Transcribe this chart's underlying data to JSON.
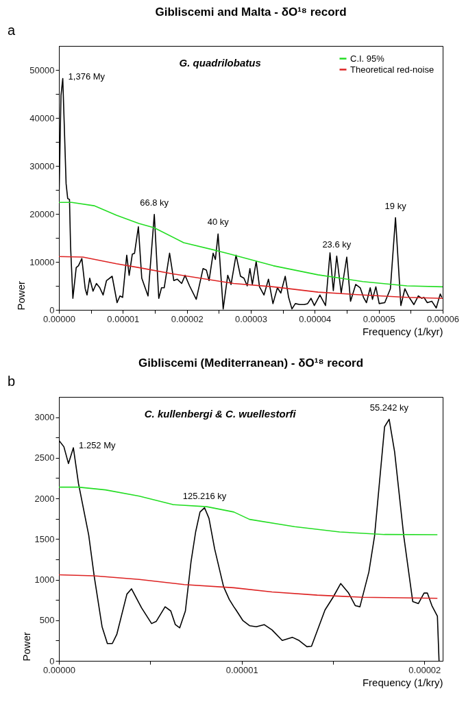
{
  "chart_data": [
    {
      "type": "line",
      "title": "Gibliscemi and Malta  - δO¹⁸ record",
      "xlabel": "Frequency (1/kyr)",
      "ylabel": "Power",
      "xlim": [
        0,
        6e-05
      ],
      "ylim": [
        0,
        55000
      ],
      "xticks": [
        {
          "value": 0,
          "label": "0.00000"
        },
        {
          "value": 5e-06,
          "label": null
        },
        {
          "value": 1e-05,
          "label": "0.00001"
        },
        {
          "value": 1.5e-05,
          "label": null
        },
        {
          "value": 2e-05,
          "label": "0.00002"
        },
        {
          "value": 2.5e-05,
          "label": null
        },
        {
          "value": 3e-05,
          "label": "0.00003"
        },
        {
          "value": 3.5e-05,
          "label": null
        },
        {
          "value": 4e-05,
          "label": "0.00004"
        },
        {
          "value": 4.5e-05,
          "label": null
        },
        {
          "value": 5e-05,
          "label": "0.00005"
        },
        {
          "value": 5.5e-05,
          "label": null
        },
        {
          "value": 6e-05,
          "label": "0.00006"
        }
      ],
      "yticks": [
        0,
        {
          "value": 5000,
          "label": null
        },
        10000,
        {
          "value": 15000,
          "label": null
        },
        20000,
        {
          "value": 25000,
          "label": null
        },
        30000,
        {
          "value": 35000,
          "label": null
        },
        40000,
        {
          "value": 45000,
          "label": null
        },
        50000
      ],
      "legend": "top right",
      "marker": "none",
      "series": [
        {
          "color": "#000000",
          "x": [
            4e-08,
            3.2e-07,
            6e-07,
            8.1e-07,
            1.12e-06,
            1.37e-06,
            1.65e-06,
            1.82e-06,
            2.18e-06,
            2.7e-06,
            3.05e-06,
            3.58e-06,
            4.11e-06,
            4.39e-06,
            4.81e-06,
            5.33e-06,
            5.86e-06,
            6.39e-06,
            6.91e-06,
            7.44e-06,
            8.32e-06,
            9.09e-06,
            9.54e-06,
            9.96e-06,
            1.06e-05,
            1.098e-05,
            1.147e-05,
            1.182e-05,
            1.242e-05,
            1.295e-05,
            1.393e-05,
            1.491e-05,
            1.561e-05,
            1.604e-05,
            1.646e-05,
            1.73e-05,
            1.796e-05,
            1.849e-05,
            1.919e-05,
            1.972e-05,
            2.042e-05,
            2.147e-05,
            2.253e-05,
            2.305e-05,
            2.347e-05,
            2.411e-05,
            2.446e-05,
            2.488e-05,
            2.568e-05,
            2.639e-05,
            2.691e-05,
            2.769e-05,
            2.839e-05,
            2.892e-05,
            2.944e-05,
            2.986e-05,
            3.024e-05,
            3.084e-05,
            3.136e-05,
            3.206e-05,
            3.276e-05,
            3.346e-05,
            3.416e-05,
            3.469e-05,
            3.538e-05,
            3.591e-05,
            3.643e-05,
            3.696e-05,
            3.766e-05,
            3.836e-05,
            3.888e-05,
            3.941e-05,
            3.993e-05,
            4.08e-05,
            4.168e-05,
            4.238e-05,
            4.29e-05,
            4.343e-05,
            4.413e-05,
            4.5e-05,
            4.559e-05,
            4.64e-05,
            4.71e-05,
            4.762e-05,
            4.808e-05,
            4.867e-05,
            4.902e-05,
            4.955e-05,
            5.007e-05,
            5.094e-05,
            5.182e-05,
            5.262e-05,
            5.346e-05,
            5.409e-05,
            5.462e-05,
            5.549e-05,
            5.619e-05,
            5.671e-05,
            5.706e-05,
            5.759e-05,
            5.829e-05,
            5.899e-05,
            5.962e-05,
            5.986e-05
          ],
          "values": [
            25000,
            44700,
            48200,
            39500,
            26300,
            23200,
            23000,
            13200,
            2400,
            8800,
            9200,
            10700,
            4400,
            3100,
            6600,
            3900,
            5500,
            4600,
            3100,
            6100,
            7000,
            1500,
            2900,
            2600,
            11400,
            7200,
            11600,
            11800,
            17300,
            6600,
            2900,
            19900,
            2400,
            4600,
            4600,
            11800,
            6100,
            6400,
            5500,
            7200,
            5000,
            2200,
            8600,
            8300,
            6100,
            11800,
            10500,
            15800,
            200,
            7200,
            5300,
            11400,
            7000,
            6600,
            5000,
            8600,
            5300,
            10100,
            4800,
            3100,
            6400,
            1300,
            4600,
            3500,
            7000,
            2600,
            200,
            1300,
            1100,
            1100,
            1300,
            2400,
            900,
            3100,
            900,
            11900,
            4000,
            11200,
            3500,
            11000,
            1800,
            5300,
            4600,
            2600,
            1500,
            4600,
            2200,
            4800,
            1300,
            1500,
            4400,
            19200,
            900,
            4400,
            2900,
            1100,
            2900,
            2400,
            2600,
            1500,
            1800,
            400,
            3300,
            2600
          ]
        },
        {
          "name": "C.I. 95%",
          "color": "#22dd22",
          "x": [
            0,
            2e-06,
            5.5e-06,
            9e-06,
            1.25e-05,
            1.49e-05,
            1.95e-05,
            2.48e-05,
            2.65e-05,
            3.35e-05,
            4.05e-05,
            4.75e-05,
            5.44e-05,
            6e-05
          ],
          "values": [
            22400,
            22400,
            21700,
            19700,
            18000,
            17100,
            14000,
            12300,
            11700,
            9200,
            7300,
            5900,
            5000,
            4800
          ]
        },
        {
          "name": "Theoretical red-noise",
          "color": "#dd2222",
          "x": [
            0,
            3.75e-06,
            9e-06,
            1.25e-05,
            1.78e-05,
            2.305e-05,
            2.73e-05,
            3.35e-05,
            4.05e-05,
            4.75e-05,
            5.44e-05,
            6e-05
          ],
          "values": [
            11100,
            11000,
            9600,
            8800,
            7500,
            6400,
            5500,
            4800,
            3700,
            3100,
            2600,
            2400
          ]
        }
      ],
      "annotations": [
        "a",
        "G. quadrilobatus",
        {
          "text": "1,376 My",
          "x": 6e-07,
          "y": 48200
        },
        {
          "text": "66.8 ky",
          "x": 1.491e-05,
          "y": 19900
        },
        {
          "text": "40 ky",
          "x": 2.488e-05,
          "y": 15800
        },
        {
          "text": "23.6 ky",
          "x": 4.343e-05,
          "y": 11200
        },
        {
          "text": "19 ky",
          "x": 5.262e-05,
          "y": 19200
        }
      ]
    },
    {
      "type": "line",
      "title": "Gibliscemi (Mediterranean)  - δO¹⁸ record",
      "xlabel": "Frequency (1/kry)",
      "ylabel": "Power",
      "xlim": [
        0,
        2.1e-05
      ],
      "ylim": [
        0,
        3250
      ],
      "xticks": [
        {
          "value": 0,
          "label": "0.00000"
        },
        {
          "value": 5e-06,
          "label": null
        },
        {
          "value": 1e-05,
          "label": "0.00001"
        },
        {
          "value": 1.5e-05,
          "label": null
        },
        {
          "value": 2e-05,
          "label": "0.00002"
        }
      ],
      "yticks": [
        0,
        {
          "value": 250,
          "label": null
        },
        500,
        {
          "value": 750,
          "label": null
        },
        1000,
        {
          "value": 1250,
          "label": null
        },
        1500,
        {
          "value": 1750,
          "label": null
        },
        2000,
        {
          "value": 2250,
          "label": null
        },
        2500,
        {
          "value": 2750,
          "label": null
        },
        3000
      ],
      "legend": "top right",
      "marker": "none",
      "series": [
        {
          "color": "#000000",
          "x": [
            0,
            2.7e-07,
            5.2e-07,
            7.9e-07,
            1.07e-06,
            1.63e-06,
            1.93e-06,
            2.36e-06,
            2.65e-06,
            2.92e-06,
            3.17e-06,
            3.72e-06,
            3.97e-06,
            4.52e-06,
            5.07e-06,
            5.32e-06,
            5.81e-06,
            6.12e-06,
            6.37e-06,
            6.61e-06,
            6.92e-06,
            7.23e-06,
            7.48e-06,
            7.72e-06,
            7.97e-06,
            8.21e-06,
            8.52e-06,
            9.01e-06,
            9.32e-06,
            9.57e-06,
            9.69e-06,
            1.006e-05,
            1.043e-05,
            1.08e-05,
            1.123e-05,
            1.166e-05,
            1.222e-05,
            1.277e-05,
            1.314e-05,
            1.357e-05,
            1.382e-05,
            1.456e-05,
            1.5e-05,
            1.542e-05,
            1.585e-05,
            1.622e-05,
            1.647e-05,
            1.696e-05,
            1.727e-05,
            1.782e-05,
            1.807e-05,
            1.837e-05,
            1.887e-05,
            1.936e-05,
            1.967e-05,
            1.998e-05,
            2.016e-05,
            2.041e-05,
            2.071e-05,
            2.08e-05
          ],
          "values": [
            2715,
            2637,
            2430,
            2624,
            2183,
            1548,
            1042,
            420,
            213,
            213,
            329,
            822,
            887,
            653,
            459,
            485,
            666,
            614,
            446,
            407,
            614,
            1224,
            1587,
            1833,
            1885,
            1755,
            1379,
            913,
            757,
            666,
            627,
            498,
            433,
            420,
            446,
            381,
            251,
            290,
            251,
            174,
            179,
            627,
            783,
            952,
            835,
            679,
            666,
            1094,
            1535,
            2883,
            2974,
            2572,
            1535,
            731,
            705,
            835,
            835,
            679,
            550,
            0
          ]
        },
        {
          "name": "C.I. 95%",
          "color": "#22dd22",
          "x": [
            0,
            1.07e-06,
            2.55e-06,
            4.4e-06,
            6.24e-06,
            8.09e-06,
            9.57e-06,
            1.043e-05,
            1.289e-05,
            1.536e-05,
            1.782e-05,
            2.071e-05
          ],
          "values": [
            2139,
            2139,
            2105,
            2028,
            1924,
            1898,
            1833,
            1742,
            1652,
            1587,
            1556,
            1553
          ]
        },
        {
          "name": "Theoretical red-noise",
          "color": "#dd2222",
          "x": [
            0,
            1.93e-06,
            4.4e-06,
            6.86e-06,
            9.57e-06,
            1.166e-05,
            1.413e-05,
            1.659e-05,
            2.071e-05
          ],
          "values": [
            1060,
            1047,
            1003,
            939,
            900,
            848,
            809,
            783,
            770
          ]
        }
      ],
      "annotations": [
        "b",
        "C. kullenbergi & C. wuellestorfi",
        {
          "text": "1.252 My",
          "x": 7.9e-07,
          "y": 2624
        },
        {
          "text": "125.216 ky",
          "x": 7.97e-06,
          "y": 1885
        },
        {
          "text": "55.242 ky",
          "x": 1.807e-05,
          "y": 2974
        }
      ]
    }
  ]
}
